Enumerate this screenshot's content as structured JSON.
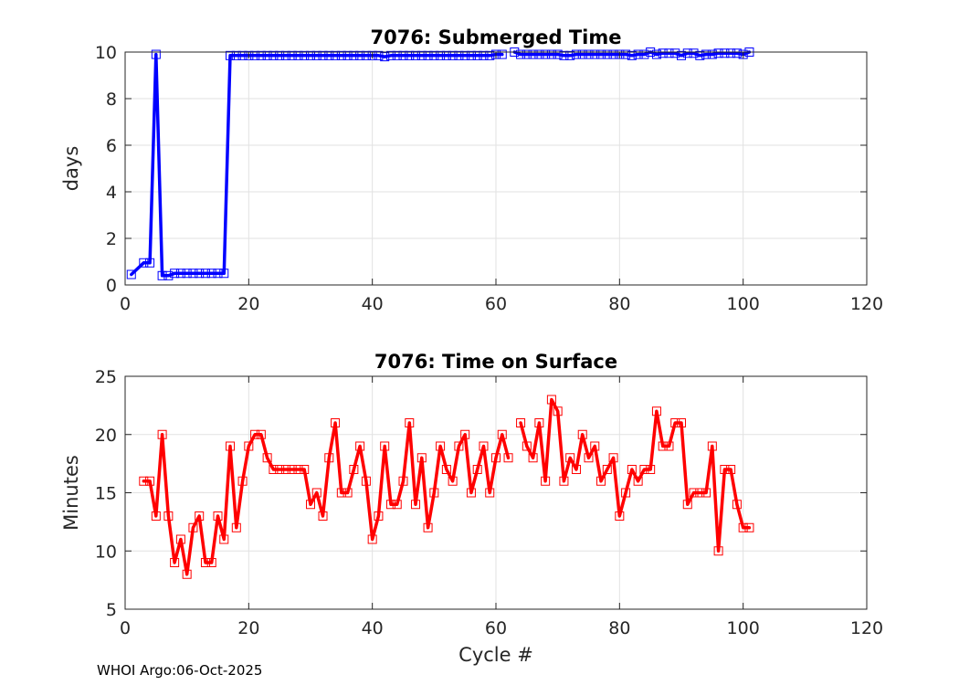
{
  "footer": "WHOI Argo:06-Oct-2025",
  "chart_data": [
    {
      "type": "line",
      "title": "7076: Submerged Time",
      "xlabel": "",
      "ylabel": "days",
      "xlim": [
        0,
        120
      ],
      "ylim": [
        0,
        10
      ],
      "xticks": [
        0,
        20,
        40,
        60,
        80,
        100,
        120
      ],
      "yticks": [
        0,
        2,
        4,
        6,
        8,
        10
      ],
      "grid": true,
      "series": [
        {
          "name": "Submerged Time",
          "color": "#0000ff",
          "marker": "square",
          "x": [
            1,
            3,
            4,
            5,
            6,
            7,
            8,
            9,
            10,
            11,
            12,
            13,
            14,
            15,
            16,
            17,
            18,
            19,
            20,
            21,
            22,
            23,
            24,
            25,
            26,
            27,
            28,
            29,
            30,
            31,
            32,
            33,
            34,
            35,
            36,
            37,
            38,
            39,
            40,
            41,
            42,
            43,
            44,
            45,
            46,
            47,
            48,
            49,
            50,
            51,
            52,
            53,
            54,
            55,
            56,
            57,
            58,
            59,
            60,
            61,
            null,
            63,
            64,
            65,
            66,
            67,
            68,
            69,
            70,
            71,
            72,
            73,
            74,
            75,
            76,
            77,
            78,
            79,
            80,
            81,
            82,
            83,
            84,
            85,
            86,
            87,
            88,
            89,
            90,
            91,
            92,
            93,
            94,
            95,
            96,
            97,
            98,
            99,
            100,
            101
          ],
          "y": [
            0.45,
            0.95,
            0.95,
            9.9,
            0.4,
            0.4,
            0.5,
            0.5,
            0.5,
            0.5,
            0.5,
            0.5,
            0.5,
            0.5,
            0.5,
            9.85,
            9.85,
            9.85,
            9.85,
            9.85,
            9.85,
            9.85,
            9.85,
            9.85,
            9.85,
            9.85,
            9.85,
            9.85,
            9.85,
            9.85,
            9.85,
            9.85,
            9.85,
            9.85,
            9.85,
            9.85,
            9.85,
            9.85,
            9.85,
            9.85,
            9.8,
            9.85,
            9.85,
            9.85,
            9.85,
            9.85,
            9.85,
            9.85,
            9.85,
            9.85,
            9.85,
            9.85,
            9.85,
            9.85,
            9.85,
            9.85,
            9.85,
            9.85,
            9.9,
            9.9,
            null,
            10.0,
            9.9,
            9.9,
            9.9,
            9.9,
            9.9,
            9.9,
            9.9,
            9.85,
            9.85,
            9.9,
            9.9,
            9.9,
            9.9,
            9.9,
            9.9,
            9.9,
            9.9,
            9.9,
            9.85,
            9.9,
            9.9,
            10.0,
            9.9,
            9.95,
            9.95,
            9.95,
            9.85,
            9.95,
            9.95,
            9.85,
            9.9,
            9.9,
            9.95,
            9.95,
            9.95,
            9.95,
            9.9,
            10.0
          ]
        }
      ]
    },
    {
      "type": "line",
      "title": "7076: Time on Surface",
      "xlabel": "Cycle #",
      "ylabel": "Minutes",
      "xlim": [
        0,
        120
      ],
      "ylim": [
        5,
        25
      ],
      "xticks": [
        0,
        20,
        40,
        60,
        80,
        100,
        120
      ],
      "yticks": [
        5,
        10,
        15,
        20,
        25
      ],
      "grid": true,
      "series": [
        {
          "name": "Time on Surface",
          "color": "#ff0000",
          "marker": "square",
          "x": [
            3,
            4,
            5,
            6,
            7,
            8,
            9,
            10,
            11,
            12,
            13,
            14,
            15,
            16,
            17,
            18,
            19,
            20,
            21,
            22,
            23,
            24,
            25,
            26,
            27,
            28,
            29,
            30,
            31,
            32,
            33,
            34,
            35,
            36,
            37,
            38,
            39,
            40,
            41,
            42,
            43,
            44,
            45,
            46,
            47,
            48,
            49,
            50,
            51,
            52,
            53,
            54,
            55,
            56,
            57,
            58,
            59,
            60,
            61,
            62,
            null,
            64,
            65,
            66,
            67,
            68,
            69,
            70,
            71,
            72,
            73,
            74,
            75,
            76,
            77,
            78,
            79,
            80,
            81,
            82,
            83,
            84,
            85,
            86,
            87,
            88,
            89,
            90,
            91,
            92,
            93,
            94,
            95,
            96,
            97,
            98,
            99,
            100,
            101
          ],
          "y": [
            16,
            16,
            13,
            20,
            13,
            9,
            11,
            8,
            12,
            13,
            9,
            9,
            13,
            11,
            19,
            12,
            16,
            19,
            20,
            20,
            18,
            17,
            17,
            17,
            17,
            17,
            17,
            14,
            15,
            13,
            18,
            21,
            15,
            15,
            17,
            19,
            16,
            11,
            13,
            19,
            14,
            14,
            16,
            21,
            14,
            18,
            12,
            15,
            19,
            17,
            16,
            19,
            20,
            15,
            17,
            19,
            15,
            18,
            20,
            18,
            null,
            21,
            19,
            18,
            21,
            16,
            23,
            22,
            16,
            18,
            17,
            20,
            18,
            19,
            16,
            17,
            18,
            13,
            15,
            17,
            16,
            17,
            17,
            22,
            19,
            19,
            21,
            21,
            14,
            15,
            15,
            15,
            19,
            10,
            17,
            17,
            14,
            12,
            12
          ]
        }
      ]
    }
  ]
}
